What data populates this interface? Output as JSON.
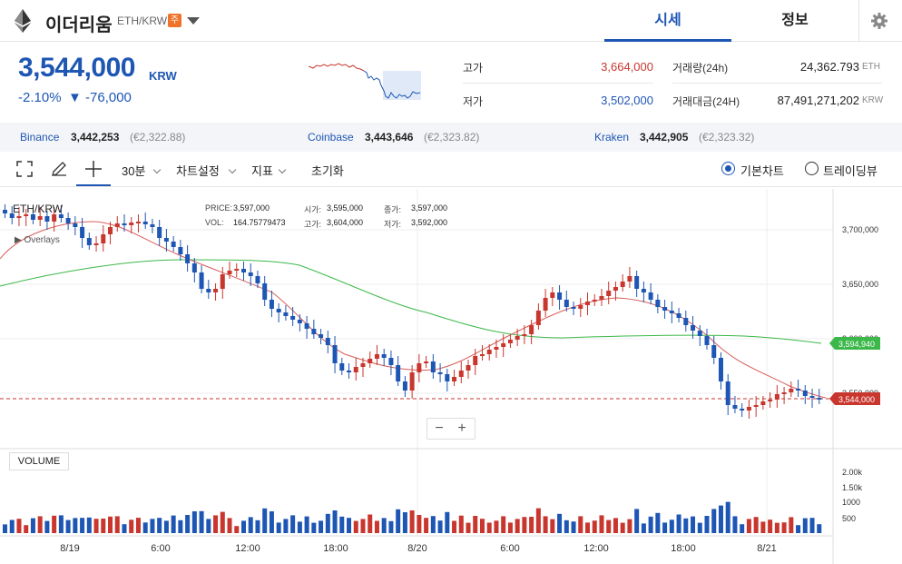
{
  "header": {
    "coin_name": "이더리움",
    "pair": "ETH/KRW",
    "badge": "주",
    "tab_price": "시세",
    "tab_info": "정보",
    "icon": "gear-icon"
  },
  "price": {
    "current": "3,544,000",
    "unit": "KRW",
    "change_rate": "-2.10%",
    "change_amount": "▼ -76,000",
    "color": "#1e56b4"
  },
  "stats": {
    "high_label": "고가",
    "high": "3,664,000",
    "low_label": "저가",
    "low": "3,502,000",
    "volume_label": "거래량(24h)",
    "volume": "24,362.793",
    "volume_unit": "ETH",
    "amount_label": "거래대금(24H)",
    "amount": "87,491,271,202",
    "amount_unit": "KRW"
  },
  "exchanges": [
    {
      "name": "Binance",
      "price": "3,442,253",
      "eur": "(€2,322.88)"
    },
    {
      "name": "Coinbase",
      "price": "3,443,646",
      "eur": "(€2,323.82)"
    },
    {
      "name": "Kraken",
      "price": "3,442,905",
      "eur": "(€2,323.32)"
    }
  ],
  "toolbar": {
    "interval": "30분",
    "chart_settings": "차트설정",
    "indicators": "지표",
    "reset": "초기화",
    "basic_chart": "기본차트",
    "tradingview": "트레이딩뷰"
  },
  "chart": {
    "title": "ETH/KRW",
    "overlay": "Overlays",
    "info": {
      "price_label": "PRICE:",
      "price": "3,597,000",
      "vol_label": "VOL:",
      "vol": "164.75779473",
      "open_label": "시가:",
      "open": "3,595,000",
      "high_label": "고가:",
      "high": "3,604,000",
      "close_label": "종가:",
      "close": "3,597,000",
      "low_label": "저가:",
      "low": "3,592,000"
    },
    "zoom_out": "−",
    "zoom_in": "+",
    "volume_label": "VOLUME",
    "ma_tag": "3,594,940",
    "price_tag": "3,544,000",
    "x_labels": [
      "8/19",
      "6:00",
      "12:00",
      "18:00",
      "8/20",
      "6:00",
      "12:00",
      "18:00",
      "8/21"
    ],
    "y_labels": [
      "3,700,000",
      "3,650,000",
      "3,600,000",
      "3,550,000"
    ],
    "vol_labels": [
      "2.00k",
      "1.50k",
      "1000",
      "500"
    ],
    "up_color": "#c8362e",
    "down_color": "#1e56b4"
  },
  "chart_data": {
    "type": "candlestick",
    "ylim": [
      3490000,
      3735000
    ],
    "last_close": 3544000,
    "ma_value": 3594940
  }
}
